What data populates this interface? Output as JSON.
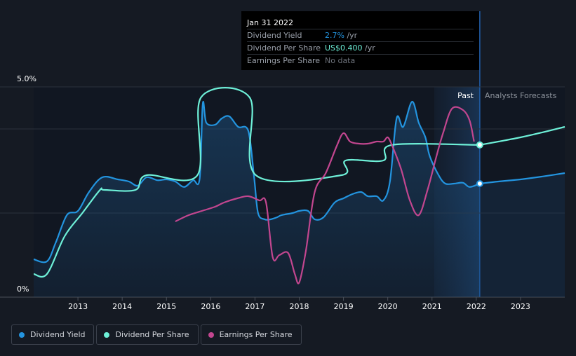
{
  "chart_data": {
    "type": "line",
    "x_range": [
      2012.0,
      2024.0
    ],
    "y_range_pct": [
      0,
      5.0
    ],
    "y_tick_labels": [
      "0%",
      "5.0%"
    ],
    "x_tick_labels": [
      "2013",
      "2014",
      "2015",
      "2016",
      "2017",
      "2018",
      "2019",
      "2020",
      "2021",
      "2022",
      "2023"
    ],
    "x_ticks": [
      2013,
      2014,
      2015,
      2016,
      2017,
      2018,
      2019,
      2020,
      2021,
      2022,
      2023
    ],
    "past_region_start": 2021.05,
    "forecast_start": 2022.08,
    "past_label": "Past",
    "forecast_label": "Analysts Forecasts",
    "series": [
      {
        "name": "Dividend Yield",
        "color": "#2394df",
        "points": [
          [
            2012.0,
            0.9
          ],
          [
            2012.3,
            0.85
          ],
          [
            2012.5,
            1.3
          ],
          [
            2012.75,
            1.95
          ],
          [
            2013.0,
            2.05
          ],
          [
            2013.25,
            2.5
          ],
          [
            2013.55,
            2.85
          ],
          [
            2013.9,
            2.8
          ],
          [
            2014.15,
            2.75
          ],
          [
            2014.35,
            2.65
          ],
          [
            2014.55,
            2.85
          ],
          [
            2014.8,
            2.78
          ],
          [
            2015.0,
            2.8
          ],
          [
            2015.2,
            2.75
          ],
          [
            2015.4,
            2.62
          ],
          [
            2015.6,
            2.78
          ],
          [
            2015.75,
            2.82
          ],
          [
            2015.82,
            4.6
          ],
          [
            2015.9,
            4.15
          ],
          [
            2016.1,
            4.1
          ],
          [
            2016.25,
            4.25
          ],
          [
            2016.42,
            4.3
          ],
          [
            2016.62,
            4.05
          ],
          [
            2016.85,
            3.95
          ],
          [
            2016.98,
            2.85
          ],
          [
            2017.07,
            2.0
          ],
          [
            2017.22,
            1.85
          ],
          [
            2017.35,
            1.85
          ],
          [
            2017.5,
            1.9
          ],
          [
            2017.6,
            1.95
          ],
          [
            2017.85,
            2.0
          ],
          [
            2018.0,
            2.05
          ],
          [
            2018.2,
            2.05
          ],
          [
            2018.35,
            1.85
          ],
          [
            2018.55,
            1.9
          ],
          [
            2018.8,
            2.25
          ],
          [
            2019.0,
            2.35
          ],
          [
            2019.2,
            2.45
          ],
          [
            2019.4,
            2.5
          ],
          [
            2019.55,
            2.4
          ],
          [
            2019.75,
            2.4
          ],
          [
            2019.9,
            2.3
          ],
          [
            2020.05,
            2.75
          ],
          [
            2020.2,
            4.25
          ],
          [
            2020.35,
            4.05
          ],
          [
            2020.55,
            4.65
          ],
          [
            2020.7,
            4.15
          ],
          [
            2020.85,
            3.8
          ],
          [
            2020.95,
            3.35
          ],
          [
            2021.15,
            2.9
          ],
          [
            2021.3,
            2.7
          ],
          [
            2021.5,
            2.7
          ],
          [
            2021.7,
            2.72
          ],
          [
            2021.85,
            2.62
          ],
          [
            2022.08,
            2.7
          ]
        ]
      },
      {
        "name": "Dividend Per Share",
        "color": "#6ef0d8",
        "points": [
          [
            2012.0,
            0.55
          ],
          [
            2012.3,
            0.55
          ],
          [
            2012.7,
            1.45
          ],
          [
            2013.1,
            2.0
          ],
          [
            2013.5,
            2.55
          ],
          [
            2013.6,
            2.55
          ],
          [
            2014.3,
            2.55
          ],
          [
            2014.55,
            2.9
          ],
          [
            2015.7,
            2.9
          ],
          [
            2015.78,
            4.75
          ],
          [
            2016.88,
            4.75
          ],
          [
            2017.02,
            2.9
          ],
          [
            2018.95,
            2.9
          ],
          [
            2019.05,
            3.25
          ],
          [
            2019.9,
            3.25
          ],
          [
            2020.1,
            3.62
          ],
          [
            2022.08,
            3.62
          ]
        ]
      },
      {
        "name": "Earnings Per Share",
        "color": "#c2468f",
        "points": [
          [
            2015.2,
            1.8
          ],
          [
            2015.5,
            1.95
          ],
          [
            2015.8,
            2.05
          ],
          [
            2016.1,
            2.15
          ],
          [
            2016.3,
            2.25
          ],
          [
            2016.6,
            2.35
          ],
          [
            2016.85,
            2.4
          ],
          [
            2017.1,
            2.3
          ],
          [
            2017.25,
            2.25
          ],
          [
            2017.4,
            0.95
          ],
          [
            2017.55,
            1.0
          ],
          [
            2017.75,
            1.05
          ],
          [
            2017.9,
            0.55
          ],
          [
            2018.0,
            0.35
          ],
          [
            2018.15,
            1.1
          ],
          [
            2018.35,
            2.5
          ],
          [
            2018.6,
            2.95
          ],
          [
            2018.85,
            3.6
          ],
          [
            2019.0,
            3.9
          ],
          [
            2019.15,
            3.7
          ],
          [
            2019.35,
            3.65
          ],
          [
            2019.55,
            3.65
          ],
          [
            2019.75,
            3.7
          ],
          [
            2019.9,
            3.7
          ],
          [
            2020.0,
            3.8
          ],
          [
            2020.1,
            3.6
          ],
          [
            2020.3,
            3.05
          ],
          [
            2020.5,
            2.3
          ],
          [
            2020.7,
            1.95
          ],
          [
            2020.9,
            2.55
          ],
          [
            2021.1,
            3.35
          ],
          [
            2021.25,
            3.9
          ],
          [
            2021.45,
            4.48
          ],
          [
            2021.7,
            4.45
          ],
          [
            2021.85,
            4.2
          ],
          [
            2021.95,
            3.7
          ]
        ]
      }
    ],
    "forecast_series": [
      {
        "name": "Dividend Yield forecast",
        "color": "#2394df",
        "points": [
          [
            2022.08,
            2.7
          ],
          [
            2022.5,
            2.75
          ],
          [
            2023.0,
            2.8
          ],
          [
            2023.5,
            2.87
          ],
          [
            2024.0,
            2.95
          ]
        ]
      },
      {
        "name": "Dividend Per Share forecast",
        "color": "#6ef0d8",
        "points": [
          [
            2022.08,
            3.62
          ],
          [
            2022.5,
            3.7
          ],
          [
            2023.0,
            3.8
          ],
          [
            2023.5,
            3.92
          ],
          [
            2024.0,
            4.05
          ]
        ]
      }
    ],
    "markers": [
      {
        "x": 2022.08,
        "y": 2.7,
        "color": "#2394df"
      },
      {
        "x": 2022.08,
        "y": 3.62,
        "color": "#6ef0d8"
      }
    ]
  },
  "tooltip": {
    "date": "Jan 31 2022",
    "rows": [
      {
        "label": "Dividend Yield",
        "value": "2.7%",
        "unit": " /yr"
      },
      {
        "label": "Dividend Per Share",
        "value": "US$0.400",
        "unit": " /yr"
      },
      {
        "label": "Earnings Per Share",
        "value": "No data",
        "unit": ""
      }
    ]
  },
  "legend": [
    {
      "label": "Dividend Yield",
      "color": "#2394df"
    },
    {
      "label": "Dividend Per Share",
      "color": "#6ef0d8"
    },
    {
      "label": "Earnings Per Share",
      "color": "#c2468f"
    }
  ]
}
